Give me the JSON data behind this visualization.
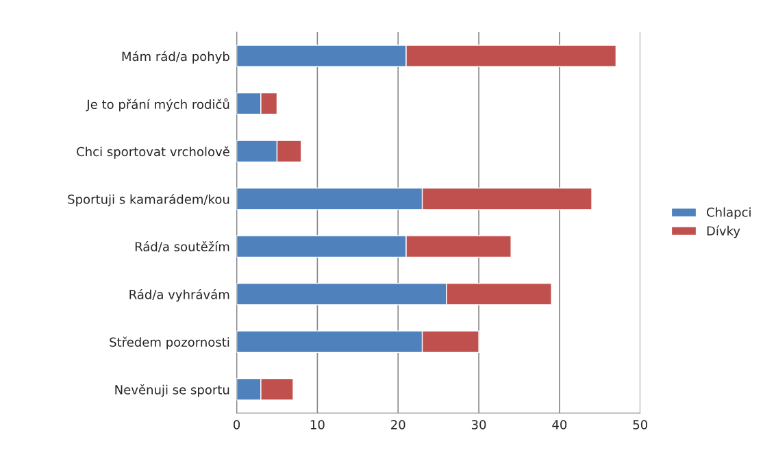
{
  "chart_data": {
    "type": "bar",
    "orientation": "horizontal",
    "stacked": true,
    "categories": [
      "Mám rád/a pohyb",
      "Je to přání mých rodičů",
      "Chci sportovat vrcholově",
      "Sportuji s kamarádem/kou",
      "Rád/a soutěžím",
      "Rád/a vyhrávám",
      "Středem pozornosti",
      "Nevěnuji se sportu"
    ],
    "series": [
      {
        "name": "Chlapci",
        "color": "#4f81bd",
        "values": [
          21,
          3,
          5,
          23,
          21,
          26,
          23,
          3
        ]
      },
      {
        "name": "Dívky",
        "color": "#c0504d",
        "values": [
          26,
          2,
          3,
          21,
          13,
          13,
          7,
          4
        ]
      }
    ],
    "xlim": [
      0,
      50
    ],
    "xticks": [
      0,
      10,
      20,
      30,
      40,
      50
    ],
    "grid": "x",
    "legend": "right"
  }
}
